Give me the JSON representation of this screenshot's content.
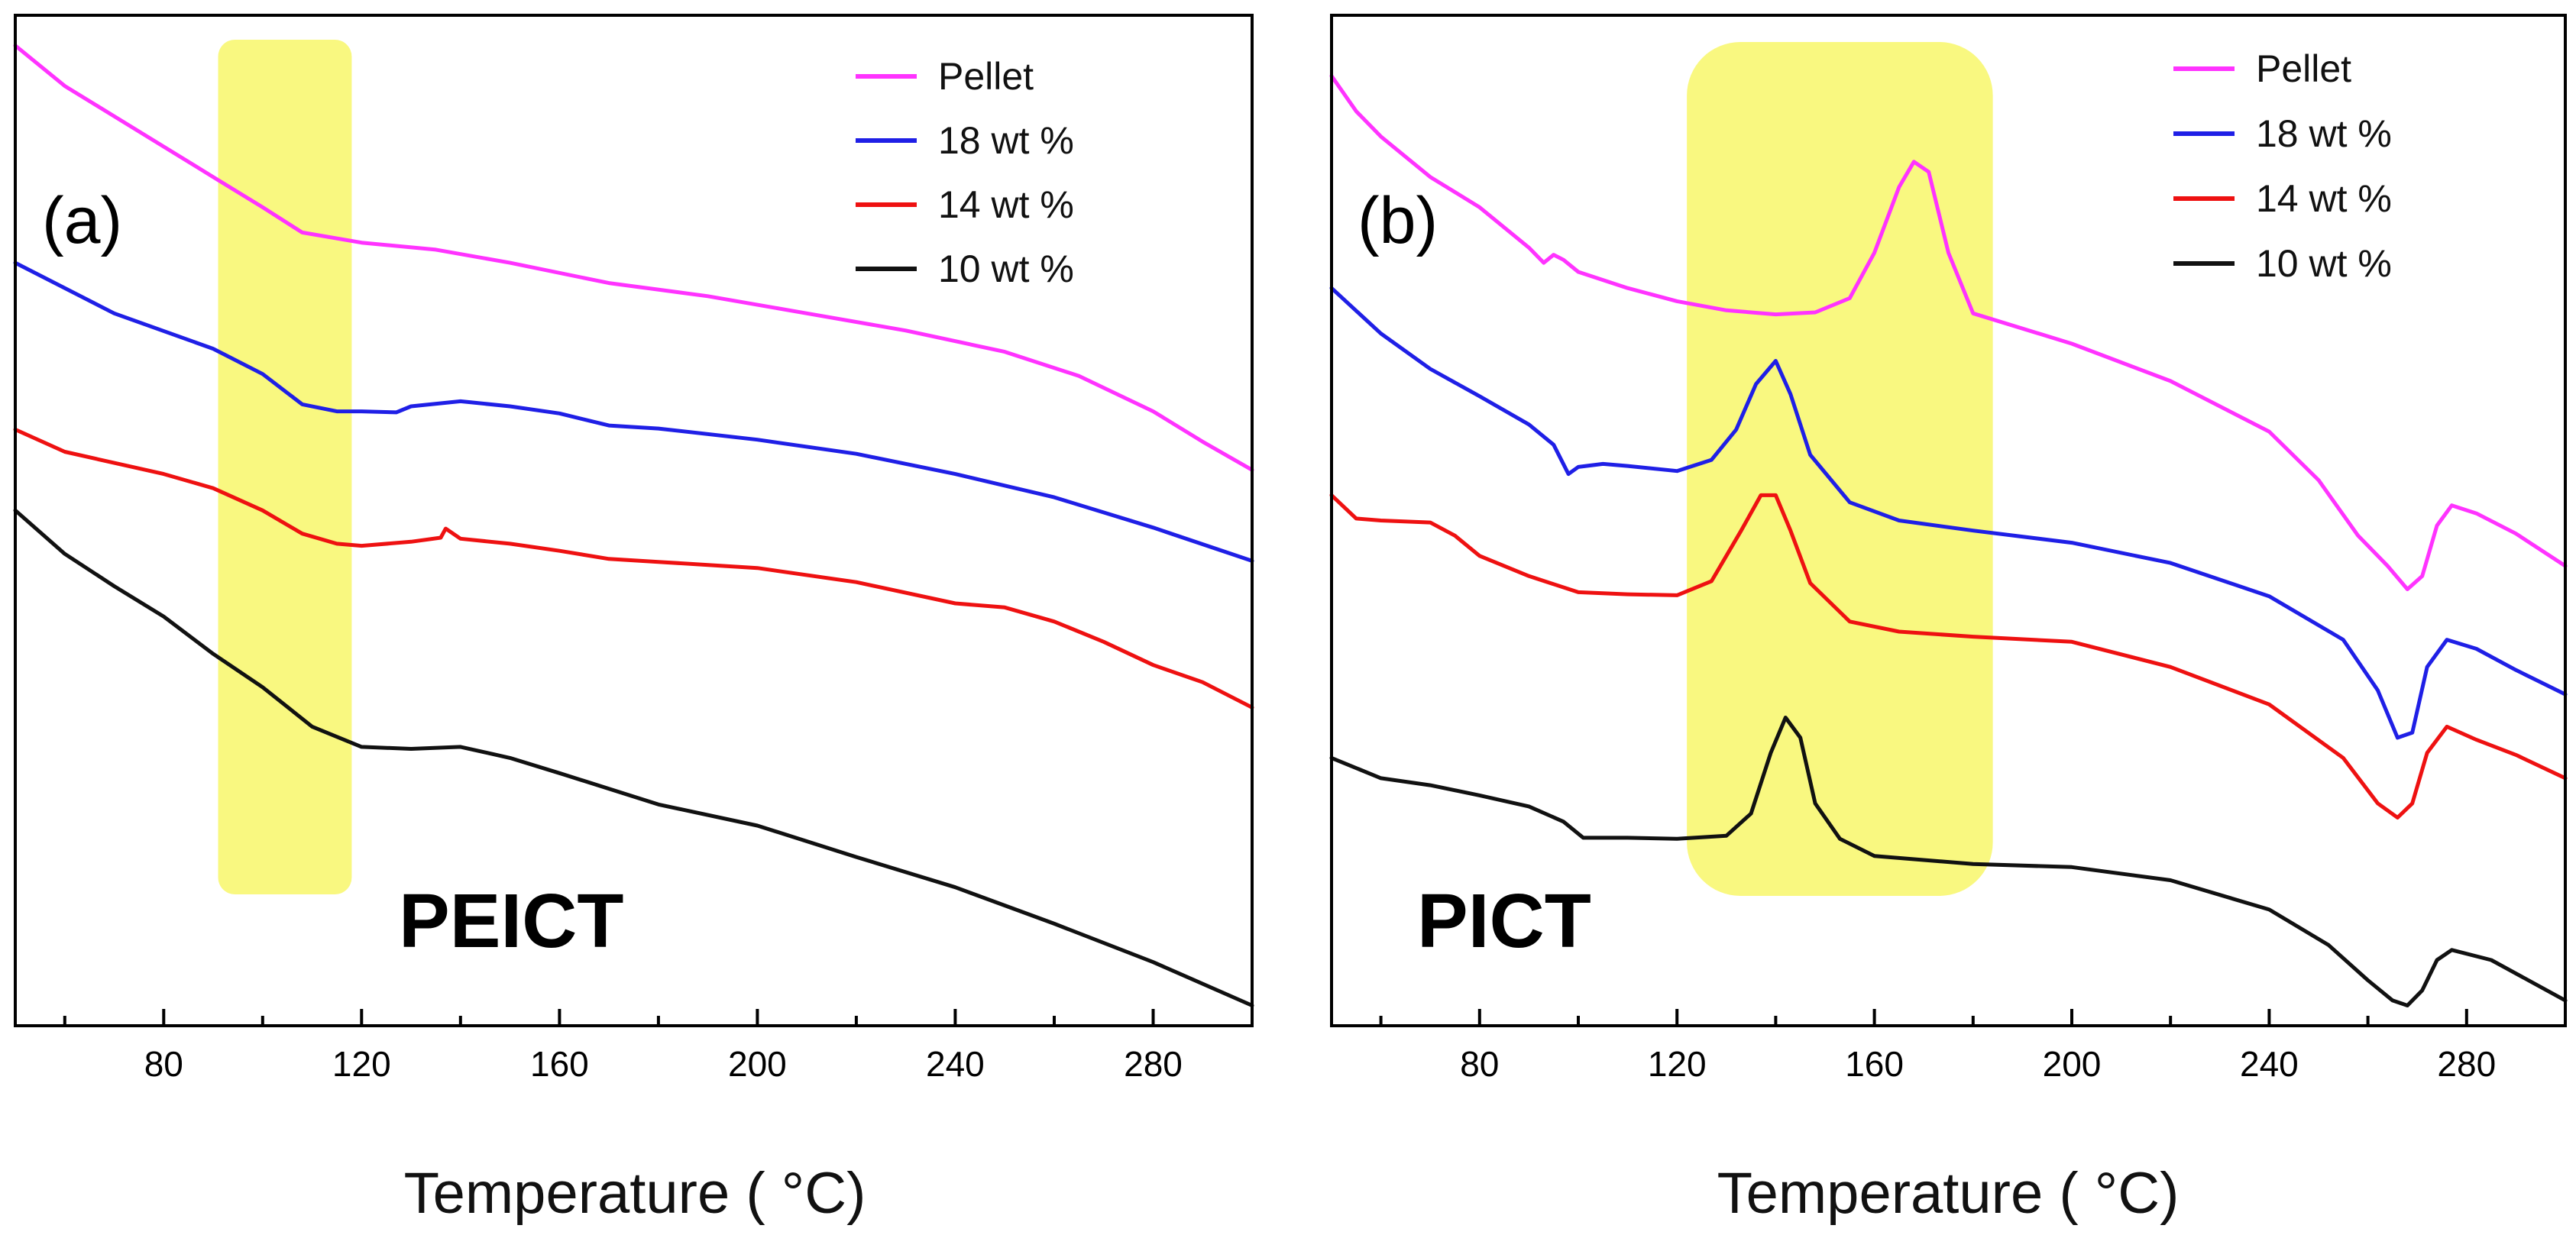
{
  "chart_data": [
    {
      "type": "line",
      "panel_label": "(a)",
      "sample_name": "PEICT",
      "xlabel": "Temperature ( °C)",
      "ylabel": "",
      "xlim": [
        50,
        300
      ],
      "ylim": [
        0,
        100
      ],
      "xticks": [
        80,
        120,
        160,
        200,
        240,
        280
      ],
      "xtick_labels": [
        "80",
        "120",
        "160",
        "200",
        "240",
        "280"
      ],
      "highlight_x": [
        91,
        118
      ],
      "legend_position": "top-right",
      "series": [
        {
          "name": "Pellet",
          "color": "#ff33ff",
          "x": [
            50,
            60,
            70,
            80,
            90,
            100,
            108,
            120,
            135,
            150,
            170,
            190,
            210,
            230,
            250,
            265,
            280,
            290,
            300
          ],
          "y": [
            97,
            93,
            90,
            87,
            84,
            81,
            78.5,
            77.5,
            76.8,
            75.5,
            73.5,
            72.2,
            70.5,
            68.8,
            66.7,
            64.3,
            60.8,
            57.8,
            55
          ]
        },
        {
          "name": "18 wt %",
          "color": "#1f1fe6",
          "x": [
            50,
            70,
            90,
            100,
            108,
            115,
            120,
            127,
            130,
            140,
            150,
            160,
            170,
            180,
            200,
            220,
            240,
            260,
            280,
            300
          ],
          "y": [
            75.5,
            70.5,
            67,
            64.5,
            61.5,
            60.8,
            60.8,
            60.7,
            61.3,
            61.8,
            61.3,
            60.6,
            59.4,
            59.1,
            58,
            56.6,
            54.6,
            52.3,
            49.3,
            46
          ]
        },
        {
          "name": "14 wt %",
          "color": "#ee1111",
          "x": [
            50,
            60,
            70,
            80,
            90,
            100,
            108,
            115,
            120,
            130,
            136,
            137,
            140,
            150,
            160,
            170,
            180,
            200,
            220,
            240,
            250,
            260,
            270,
            280,
            290,
            300
          ],
          "y": [
            59,
            56.8,
            55.7,
            54.6,
            53.2,
            51,
            48.7,
            47.7,
            47.5,
            47.9,
            48.3,
            49.2,
            48.2,
            47.7,
            47,
            46.2,
            45.9,
            45.3,
            43.9,
            41.8,
            41.4,
            40,
            38,
            35.7,
            34,
            31.5
          ]
        },
        {
          "name": "10 wt %",
          "color": "#111111",
          "x": [
            50,
            60,
            70,
            80,
            90,
            100,
            110,
            120,
            130,
            140,
            150,
            160,
            180,
            200,
            220,
            240,
            260,
            280,
            300
          ],
          "y": [
            51,
            46.7,
            43.5,
            40.5,
            36.8,
            33.5,
            29.6,
            27.6,
            27.4,
            27.6,
            26.5,
            25,
            21.9,
            19.8,
            16.7,
            13.7,
            10.1,
            6.3,
            2
          ]
        }
      ]
    },
    {
      "type": "line",
      "panel_label": "(b)",
      "sample_name": "PICT",
      "xlabel": "Temperature ( °C)",
      "ylabel": "",
      "xlim": [
        50,
        300
      ],
      "ylim": [
        0,
        100
      ],
      "xticks": [
        80,
        120,
        160,
        200,
        240,
        280
      ],
      "xtick_labels": [
        "80",
        "120",
        "160",
        "200",
        "240",
        "280"
      ],
      "highlight_x": [
        122,
        184
      ],
      "legend_position": "top-right",
      "series": [
        {
          "name": "Pellet",
          "color": "#ff33ff",
          "x": [
            50,
            55,
            60,
            70,
            80,
            90,
            93,
            95,
            97,
            100,
            110,
            120,
            130,
            140,
            148,
            155,
            160,
            165,
            168,
            171,
            175,
            180,
            200,
            220,
            240,
            250,
            258,
            264,
            268,
            271,
            274,
            277,
            282,
            290,
            300
          ],
          "y": [
            94,
            90.5,
            88,
            84,
            81,
            77,
            75.5,
            76.3,
            75.8,
            74.6,
            73,
            71.7,
            70.8,
            70.4,
            70.6,
            72,
            76.5,
            83,
            85.5,
            84.5,
            76.5,
            70.5,
            67.5,
            63.8,
            58.8,
            54,
            48.5,
            45.5,
            43.2,
            44.5,
            49.5,
            51.5,
            50.7,
            48.7,
            45.5
          ]
        },
        {
          "name": "18 wt %",
          "color": "#1f1fe6",
          "x": [
            50,
            60,
            70,
            80,
            90,
            95,
            98,
            100,
            105,
            110,
            120,
            127,
            132,
            136,
            140,
            143,
            147,
            155,
            165,
            180,
            200,
            220,
            240,
            255,
            262,
            266,
            269,
            272,
            276,
            282,
            290,
            300
          ],
          "y": [
            73,
            68.5,
            65,
            62.3,
            59.5,
            57.5,
            54.6,
            55.3,
            55.6,
            55.4,
            54.9,
            56,
            59,
            63.5,
            65.8,
            62.5,
            56.5,
            51.8,
            50,
            49,
            47.8,
            45.8,
            42.5,
            38.2,
            33.2,
            28.5,
            29,
            35.5,
            38.2,
            37.3,
            35.2,
            32.8
          ]
        },
        {
          "name": "14 wt %",
          "color": "#ee1111",
          "x": [
            50,
            55,
            60,
            70,
            75,
            80,
            90,
            100,
            110,
            120,
            127,
            133,
            137,
            140,
            143,
            147,
            155,
            165,
            180,
            200,
            220,
            240,
            255,
            262,
            266,
            269,
            272,
            276,
            282,
            290,
            300
          ],
          "y": [
            52.5,
            50.2,
            50,
            49.8,
            48.5,
            46.5,
            44.5,
            42.9,
            42.7,
            42.6,
            44,
            49,
            52.5,
            52.5,
            49,
            43.8,
            40,
            39,
            38.5,
            38,
            35.5,
            31.8,
            26.5,
            22,
            20.6,
            22,
            27,
            29.6,
            28.3,
            26.8,
            24.5
          ]
        },
        {
          "name": "10 wt %",
          "color": "#111111",
          "x": [
            50,
            60,
            70,
            80,
            90,
            97,
            101,
            110,
            120,
            130,
            135,
            139,
            142,
            145,
            148,
            153,
            160,
            180,
            200,
            220,
            240,
            252,
            260,
            265,
            268,
            271,
            274,
            277,
            285,
            300
          ],
          "y": [
            26.5,
            24.5,
            23.8,
            22.8,
            21.7,
            20.2,
            18.6,
            18.6,
            18.5,
            18.8,
            21,
            27,
            30.5,
            28.5,
            22,
            18.5,
            16.8,
            16,
            15.7,
            14.4,
            11.5,
            8,
            4.5,
            2.5,
            2,
            3.5,
            6.5,
            7.5,
            6.5,
            2.5
          ]
        }
      ]
    }
  ]
}
